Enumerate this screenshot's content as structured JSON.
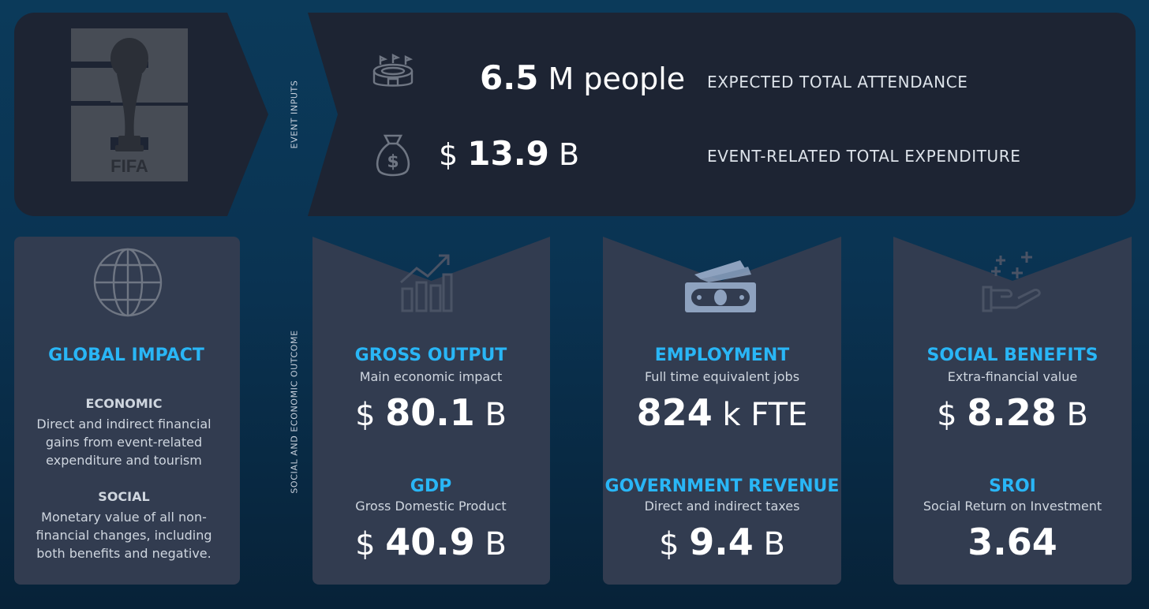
{
  "logo": {
    "badge_text": "FIFA"
  },
  "event_inputs": {
    "section_label": "EVENT INPUTS",
    "attendance": {
      "number": "6.5",
      "unit": "M people",
      "label": "EXPECTED  TOTAL ATTENDANCE",
      "icon": "stadium-icon"
    },
    "expenditure": {
      "prefix": "$",
      "number": "13.9",
      "unit": "B",
      "label": "EVENT-RELATED TOTAL EXPENDITURE",
      "icon": "money-bag-icon"
    }
  },
  "outcomes": {
    "section_label": "SOCIAL AND ECONOMIC OUTCOME",
    "global_impact": {
      "title": "GLOBAL IMPACT",
      "icon": "globe-icon",
      "economic_heading": "ECONOMIC",
      "economic_text": "Direct and indirect financial gains from event-related expenditure and tourism",
      "social_heading": "SOCIAL",
      "social_text": "Monetary value of all non-financial changes, including both benefits and negative."
    },
    "cards": [
      {
        "icon": "growth-chart-icon",
        "top": {
          "title": "GROSS OUTPUT",
          "subtitle": "Main economic impact",
          "prefix": "$",
          "number": "80.1",
          "unit": "B"
        },
        "bottom": {
          "title": "GDP",
          "subtitle": "Gross Domestic Product",
          "prefix": "$",
          "number": "40.9",
          "unit": "B"
        }
      },
      {
        "icon": "cash-stack-icon",
        "top": {
          "title": "EMPLOYMENT",
          "subtitle": "Full time equivalent jobs",
          "prefix": "",
          "number": "824",
          "unit": "k FTE"
        },
        "bottom": {
          "title": "GOVERNMENT REVENUE",
          "subtitle": "Direct and indirect taxes",
          "prefix": "$",
          "number": "9.4",
          "unit": "B"
        }
      },
      {
        "icon": "hand-plus-icon",
        "top": {
          "title": "SOCIAL BENEFITS",
          "subtitle": "Extra-financial value",
          "prefix": "$",
          "number": "8.28",
          "unit": "B"
        },
        "bottom": {
          "title": "SROI",
          "subtitle": "Social Return on Investment",
          "prefix": "",
          "number": "3.64",
          "unit": ""
        }
      }
    ]
  },
  "colors": {
    "accent": "#29b6f6",
    "panel_dark": "#1d2433",
    "card": "#323c50",
    "background": "#0a3352"
  }
}
